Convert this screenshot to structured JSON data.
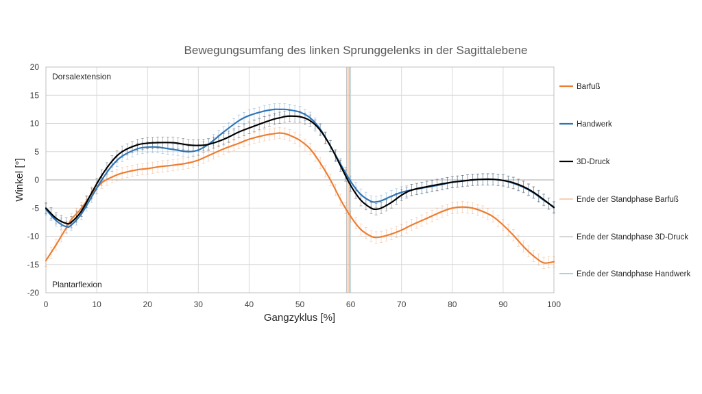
{
  "chart_data": {
    "type": "line",
    "title": "Bewegungsumfang des linken Sprunggelenks in der Sagittalebene",
    "xlabel": "Gangzyklus [%]",
    "ylabel": "Winkel [°]",
    "xlim": [
      0,
      100
    ],
    "ylim": [
      -20,
      20
    ],
    "x_ticks": [
      0,
      10,
      20,
      30,
      40,
      50,
      60,
      70,
      80,
      90,
      100
    ],
    "y_ticks": [
      20,
      15,
      10,
      5,
      0,
      -5,
      -10,
      -15,
      -20
    ],
    "grid": true,
    "legend_position": "right",
    "annotations": {
      "top": "Dorsalextension",
      "bottom": "Plantarflexion"
    },
    "series": [
      {
        "name": "Barfuß",
        "color": "#ED7D31",
        "x": [
          0,
          2,
          4,
          5,
          7,
          9,
          11,
          13,
          15,
          18,
          20,
          22,
          25,
          28,
          30,
          32,
          35,
          38,
          40,
          43,
          45,
          46,
          47,
          48,
          50,
          52,
          54,
          56,
          58,
          60,
          62,
          64,
          65,
          66,
          68,
          70,
          72,
          75,
          78,
          80,
          82,
          84,
          86,
          88,
          90,
          92,
          94,
          96,
          98,
          100
        ],
        "values": [
          -14.3,
          -11.5,
          -8.5,
          -7.0,
          -5.0,
          -2.5,
          -0.5,
          0.5,
          1.2,
          1.8,
          2.0,
          2.3,
          2.6,
          3.0,
          3.5,
          4.3,
          5.5,
          6.5,
          7.2,
          7.9,
          8.2,
          8.3,
          8.2,
          7.9,
          7.0,
          5.5,
          3.0,
          0.0,
          -3.5,
          -6.5,
          -8.8,
          -10.0,
          -10.2,
          -10.1,
          -9.6,
          -8.9,
          -8.0,
          -6.8,
          -5.6,
          -5.0,
          -4.8,
          -5.0,
          -5.6,
          -6.5,
          -8.0,
          -9.8,
          -11.8,
          -13.5,
          -14.7,
          -14.5
        ],
        "error": 1.0
      },
      {
        "name": "Handwerk",
        "color": "#2E75B6",
        "x": [
          0,
          2,
          4,
          5,
          7,
          9,
          11,
          13,
          15,
          18,
          20,
          22,
          25,
          28,
          30,
          32,
          35,
          38,
          40,
          43,
          45,
          46,
          47,
          48,
          50,
          52,
          54,
          56,
          58,
          60,
          62,
          64,
          65,
          66,
          68,
          70,
          72,
          75,
          78,
          80,
          82,
          84,
          86,
          88,
          90,
          92,
          94,
          96,
          98,
          100
        ],
        "values": [
          -5.2,
          -7.2,
          -8.3,
          -8.0,
          -6.0,
          -3.0,
          0.0,
          2.5,
          4.2,
          5.5,
          5.8,
          5.8,
          5.4,
          5.0,
          5.3,
          6.3,
          8.5,
          10.5,
          11.4,
          12.2,
          12.5,
          12.5,
          12.5,
          12.4,
          12.0,
          11.0,
          9.0,
          6.0,
          2.8,
          -0.3,
          -2.6,
          -3.8,
          -3.9,
          -3.7,
          -2.9,
          -2.2,
          -1.8,
          -1.3,
          -0.8,
          -0.4,
          -0.2,
          0.0,
          0.1,
          0.1,
          -0.1,
          -0.6,
          -1.3,
          -2.3,
          -3.6,
          -4.8
        ],
        "error": 1.0
      },
      {
        "name": "3D-Druck",
        "color": "#000000",
        "x": [
          0,
          2,
          4,
          5,
          7,
          9,
          11,
          13,
          15,
          18,
          20,
          22,
          25,
          28,
          30,
          32,
          35,
          38,
          40,
          43,
          45,
          46,
          47,
          48,
          50,
          52,
          54,
          56,
          58,
          60,
          62,
          64,
          65,
          66,
          68,
          70,
          72,
          75,
          78,
          80,
          82,
          84,
          86,
          88,
          90,
          92,
          94,
          96,
          98,
          100
        ],
        "values": [
          -5.0,
          -6.8,
          -7.7,
          -7.5,
          -5.5,
          -2.3,
          0.8,
          3.3,
          5.0,
          6.2,
          6.5,
          6.6,
          6.6,
          6.2,
          6.1,
          6.3,
          7.2,
          8.5,
          9.2,
          10.2,
          10.8,
          11.0,
          11.2,
          11.3,
          11.2,
          10.5,
          8.8,
          6.0,
          2.5,
          -1.0,
          -3.6,
          -5.0,
          -5.2,
          -5.0,
          -4.0,
          -2.7,
          -1.8,
          -1.2,
          -0.7,
          -0.4,
          -0.2,
          0.0,
          0.1,
          0.1,
          -0.1,
          -0.5,
          -1.2,
          -2.2,
          -3.5,
          -4.9
        ],
        "error": 1.0
      },
      {
        "name": "Ende der Standphase Barfuß",
        "color": "#F4B183",
        "type": "vline",
        "x_value": 59.5
      },
      {
        "name": "Ende der Standphase 3D-Druck",
        "color": "#BFBFBF",
        "type": "vline",
        "x_value": 59.2
      },
      {
        "name": "Ende der Standphase Handwerk",
        "color": "#5BC0DE",
        "type": "vline",
        "x_value": 59.8
      }
    ]
  }
}
